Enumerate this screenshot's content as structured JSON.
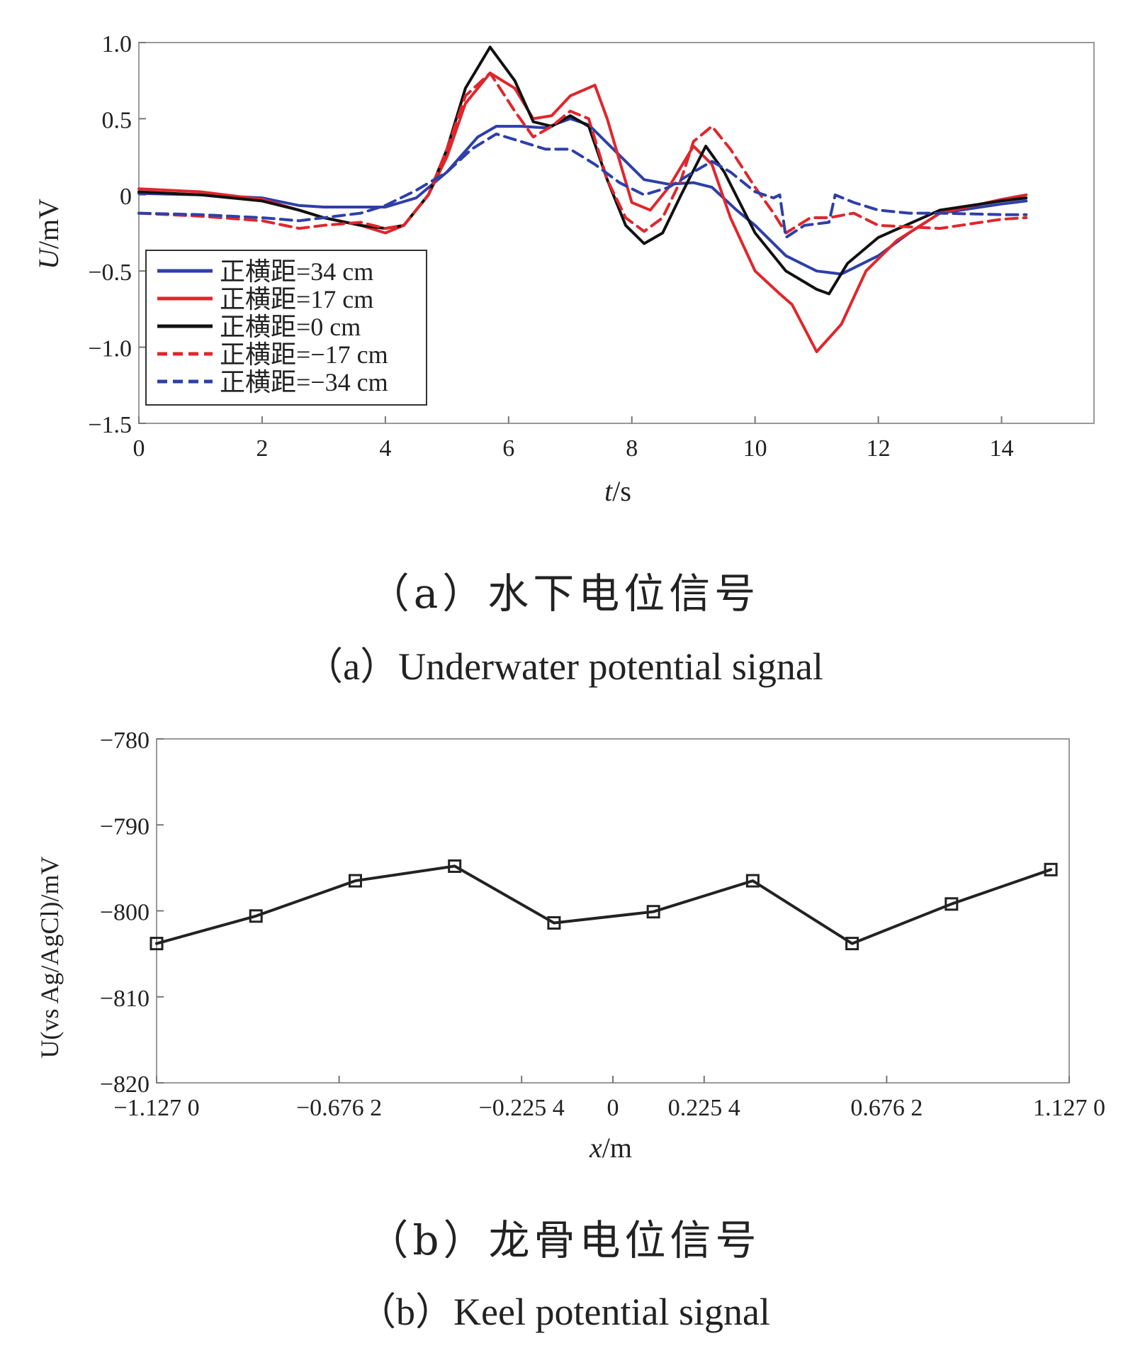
{
  "chart_data": [
    {
      "type": "line",
      "xlabel_var": "t",
      "xlabel_unit": "/s",
      "ylabel_var": "U",
      "ylabel_unit": "/mV",
      "xlim": [
        0,
        15.5
      ],
      "ylim": [
        -1.5,
        1.0
      ],
      "xticks": [
        0,
        2,
        4,
        6,
        8,
        10,
        12,
        14
      ],
      "xtick_labels": [
        "0",
        "2",
        "4",
        "6",
        "8",
        "10",
        "12",
        "14"
      ],
      "yticks": [
        1.0,
        0.5,
        0,
        -0.5,
        -1.0,
        -1.5
      ],
      "ytick_labels": [
        "1.0",
        "0.5",
        "0",
        "−0.5",
        "−1.0",
        "−1.5"
      ],
      "legend_position": "bottom-left",
      "series": [
        {
          "name": "正横距=34 cm",
          "color": "#2e3fa8",
          "dash": "solid",
          "x": [
            0,
            1,
            2,
            2.6,
            3,
            4,
            4.5,
            5,
            5.5,
            5.8,
            6.2,
            6.6,
            7,
            7.3,
            7.7,
            8.2,
            8.6,
            9,
            9.3,
            9.7,
            10,
            10.5,
            11,
            11.4,
            12,
            12.5,
            13,
            14,
            14.4
          ],
          "y": [
            0.01,
            0,
            -0.02,
            -0.07,
            -0.08,
            -0.08,
            -0.02,
            0.15,
            0.38,
            0.45,
            0.45,
            0.44,
            0.5,
            0.46,
            0.3,
            0.1,
            0.07,
            0.08,
            0.05,
            -0.1,
            -0.2,
            -0.4,
            -0.5,
            -0.52,
            -0.4,
            -0.25,
            -0.12,
            -0.06,
            -0.04
          ]
        },
        {
          "name": "正横距=17 cm",
          "color": "#e0262b",
          "dash": "solid",
          "x": [
            0,
            1,
            2,
            2.6,
            3,
            3.6,
            4,
            4.3,
            4.7,
            5,
            5.3,
            5.7,
            6.1,
            6.4,
            6.7,
            7,
            7.4,
            7.6,
            8,
            8.3,
            8.6,
            9,
            9.3,
            9.6,
            10,
            10.4,
            10.6,
            11,
            11.4,
            11.8,
            12.3,
            13,
            14,
            14.4
          ],
          "y": [
            0.04,
            0.02,
            -0.03,
            -0.1,
            -0.15,
            -0.2,
            -0.25,
            -0.2,
            0,
            0.25,
            0.6,
            0.8,
            0.7,
            0.5,
            0.52,
            0.65,
            0.72,
            0.5,
            -0.05,
            -0.1,
            0.05,
            0.32,
            0.2,
            -0.15,
            -0.5,
            -0.65,
            -0.72,
            -1.03,
            -0.85,
            -0.5,
            -0.3,
            -0.12,
            -0.03,
            0
          ]
        },
        {
          "name": "正横距=0 cm",
          "color": "#111111",
          "dash": "solid",
          "x": [
            0,
            1,
            2,
            2.6,
            3,
            3.6,
            4,
            4.3,
            4.7,
            5,
            5.3,
            5.7,
            6.1,
            6.4,
            6.7,
            7,
            7.3,
            7.6,
            7.9,
            8.2,
            8.5,
            8.8,
            9.2,
            9.5,
            10,
            10.5,
            11,
            11.2,
            11.5,
            12,
            13,
            14,
            14.4
          ],
          "y": [
            0.02,
            0,
            -0.04,
            -0.1,
            -0.15,
            -0.2,
            -0.22,
            -0.2,
            0,
            0.3,
            0.7,
            0.97,
            0.75,
            0.48,
            0.45,
            0.52,
            0.45,
            0.1,
            -0.2,
            -0.32,
            -0.25,
            0,
            0.32,
            0.15,
            -0.25,
            -0.5,
            -0.62,
            -0.65,
            -0.45,
            -0.28,
            -0.1,
            -0.04,
            -0.02
          ]
        },
        {
          "name": "正横距=−17 cm",
          "color": "#e0262b",
          "dash": "dashed",
          "x": [
            0,
            1,
            2,
            2.6,
            3,
            3.6,
            4,
            4.3,
            4.7,
            5,
            5.3,
            5.7,
            6.1,
            6.4,
            6.7,
            7,
            7.3,
            7.6,
            7.9,
            8.2,
            8.5,
            8.8,
            9,
            9.3,
            9.6,
            10,
            10.3,
            10.5,
            10.9,
            11.2,
            11.6,
            12,
            13,
            14,
            14.4
          ],
          "y": [
            -0.12,
            -0.14,
            -0.17,
            -0.22,
            -0.2,
            -0.18,
            -0.22,
            -0.2,
            0,
            0.3,
            0.65,
            0.8,
            0.55,
            0.38,
            0.45,
            0.55,
            0.5,
            0.1,
            -0.15,
            -0.24,
            -0.15,
            0.1,
            0.35,
            0.45,
            0.3,
            0.05,
            -0.12,
            -0.25,
            -0.15,
            -0.15,
            -0.12,
            -0.2,
            -0.22,
            -0.16,
            -0.15
          ]
        },
        {
          "name": "正横距=−34 cm",
          "color": "#2e3fa8",
          "dash": "dashed",
          "x": [
            0,
            1,
            2,
            2.6,
            3,
            3.6,
            4,
            4.5,
            5,
            5.4,
            5.8,
            6.2,
            6.6,
            7,
            7.4,
            7.8,
            8.2,
            8.6,
            9,
            9.3,
            9.6,
            10,
            10.3,
            10.4,
            10.5,
            10.8,
            11.2,
            11.3,
            11.6,
            12,
            12.5,
            13,
            14,
            14.4
          ],
          "y": [
            -0.12,
            -0.13,
            -0.15,
            -0.17,
            -0.15,
            -0.12,
            -0.07,
            0.03,
            0.15,
            0.3,
            0.4,
            0.35,
            0.3,
            0.3,
            0.2,
            0.08,
            0,
            0.05,
            0.15,
            0.22,
            0.15,
            0.02,
            -0.02,
            0,
            -0.28,
            -0.2,
            -0.18,
            0,
            -0.05,
            -0.1,
            -0.12,
            -0.12,
            -0.13,
            -0.13
          ]
        }
      ]
    },
    {
      "type": "line",
      "xlabel_var": "x",
      "xlabel_unit": "/m",
      "ylabel": "U(vs Ag/AgCl)/mV",
      "xlim": [
        -1.127,
        1.127
      ],
      "ylim": [
        -820,
        -780
      ],
      "xticks": [
        -1.127,
        -0.6762,
        -0.2254,
        0,
        0.2254,
        0.6762,
        1.127
      ],
      "xtick_labels": [
        "−1.127 0",
        "−0.676 2",
        "−0.225 4",
        "0",
        "0.225 4",
        "0.676 2",
        "1.127 0"
      ],
      "yticks": [
        -780,
        -790,
        -800,
        -810,
        -820
      ],
      "ytick_labels": [
        "−780",
        "−790",
        "−800",
        "−810",
        "−820"
      ],
      "series": [
        {
          "name": "keel",
          "color": "#222222",
          "marker": "square",
          "x": [
            -1.127,
            -0.8816,
            -0.6362,
            -0.3908,
            -0.1454,
            0.1,
            0.3454,
            0.5908,
            0.8362,
            1.0816
          ],
          "y": [
            -803.8,
            -800.6,
            -796.5,
            -794.8,
            -801.4,
            -800.1,
            -796.5,
            -803.8,
            -799.2,
            -795.2
          ]
        }
      ]
    }
  ],
  "captions": {
    "a_cn": "（a）水下电位信号",
    "a_en": "（a）Underwater potential signal",
    "b_cn": "（b）龙骨电位信号",
    "b_en": "（b）Keel potential signal"
  }
}
